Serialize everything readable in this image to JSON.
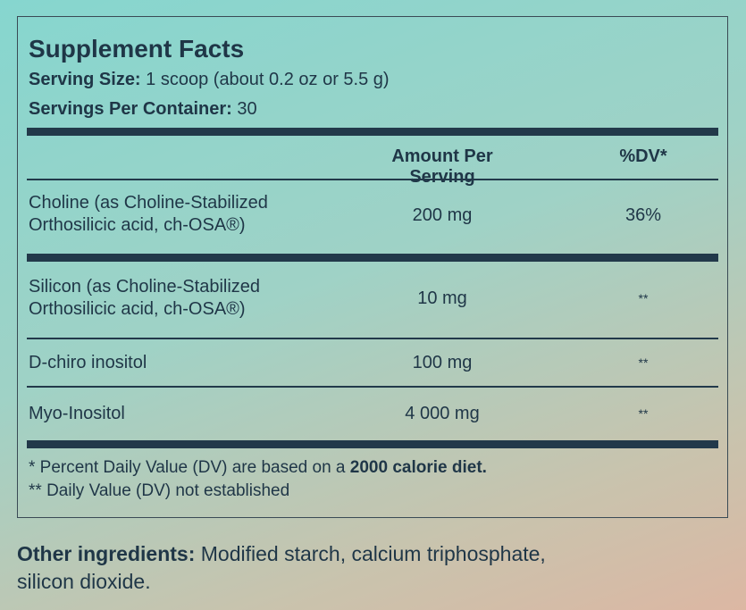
{
  "facts": {
    "title": "Supplement Facts",
    "serving_size_label": "Serving Size:",
    "serving_size_value": "1 scoop (about 0.2 oz or 5.5 g)",
    "servings_label": "Servings Per Container:",
    "servings_value": "30",
    "header_amount": "Amount Per Serving",
    "header_dv": "%DV*",
    "rows": [
      {
        "name_line1": "Choline (as Choline-Stabilized",
        "name_line2": "Orthosilicic acid, ch-OSA®)",
        "amount": "200 mg",
        "dv": "36%"
      },
      {
        "name_line1": "Silicon (as Choline-Stabilized",
        "name_line2": "Orthosilicic acid, ch-OSA®)",
        "amount": "10 mg",
        "dv": "**"
      },
      {
        "name_line1": "D-chiro inositol",
        "amount": "100 mg",
        "dv": "**"
      },
      {
        "name_line1": "Myo-Inositol",
        "amount": "4 000 mg",
        "dv": "**"
      }
    ],
    "footnote1_start": "* Percent Daily Value (DV) are based on a ",
    "footnote1_bold": "2000 calorie diet.",
    "footnote2": "** Daily Value (DV) not established"
  },
  "other": {
    "label": "Other ingredients:",
    "text": "Modified starch, calcium triphosphate, silicon dioxide."
  }
}
